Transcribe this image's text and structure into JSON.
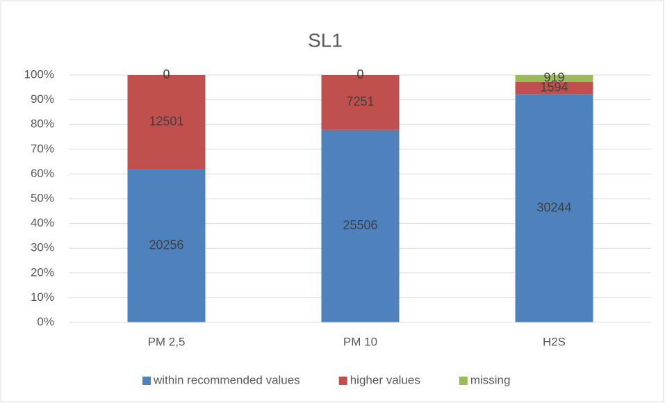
{
  "chart_data": {
    "type": "bar",
    "stacked": "percent",
    "title": "SL1",
    "categories": [
      "PM 2,5",
      "PM 10",
      "H2S"
    ],
    "series": [
      {
        "name": "within recommended values",
        "color": "#4f81bd",
        "values": [
          20256,
          25506,
          30244
        ]
      },
      {
        "name": "higher values",
        "color": "#c0504d",
        "values": [
          12501,
          7251,
          1594
        ]
      },
      {
        "name": "missing",
        "color": "#9bbb59",
        "values": [
          0,
          0,
          919
        ]
      }
    ],
    "ylim": [
      0,
      100
    ],
    "yticks": [
      {
        "value": 0,
        "label": "0%"
      },
      {
        "value": 10,
        "label": "10%"
      },
      {
        "value": 20,
        "label": "20%"
      },
      {
        "value": 30,
        "label": "30%"
      },
      {
        "value": 40,
        "label": "40%"
      },
      {
        "value": 50,
        "label": "50%"
      },
      {
        "value": 60,
        "label": "60%"
      },
      {
        "value": 70,
        "label": "70%"
      },
      {
        "value": 80,
        "label": "80%"
      },
      {
        "value": 90,
        "label": "90%"
      },
      {
        "value": 100,
        "label": "100%"
      }
    ],
    "grid": true,
    "legend": "bottom"
  }
}
